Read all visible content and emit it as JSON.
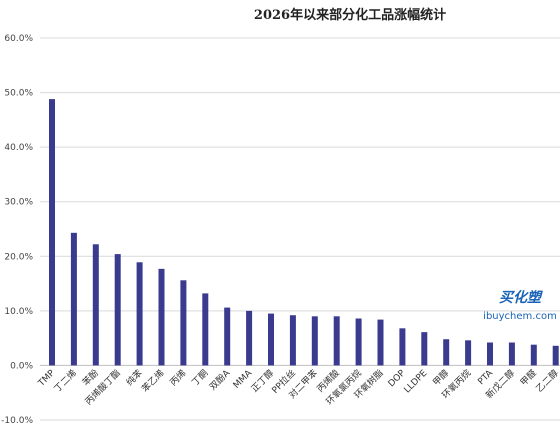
{
  "chart_data": {
    "type": "bar",
    "title": "2026年以来部分化工品涨幅统计",
    "xlabel": "",
    "ylabel": "",
    "ylim": [
      -10,
      60
    ],
    "yticks": [
      "60.0%",
      "50.0%",
      "40.0%",
      "30.0%",
      "20.0%",
      "10.0%",
      "0.0%",
      "-10.0%"
    ],
    "ytick_values": [
      60,
      50,
      40,
      30,
      20,
      10,
      0,
      -10
    ],
    "grid": true,
    "legend": "none",
    "bar_color": "#3a3a8f",
    "categories": [
      "TMP",
      "丁二烯",
      "苯酚",
      "丙烯酸丁酯",
      "纯苯",
      "苯乙烯",
      "丙烯",
      "丁酮",
      "双酚A",
      "MMA",
      "正丁醇",
      "PP拉丝",
      "对二甲苯",
      "丙烯酸",
      "环氧氯丙烷",
      "环氧树脂",
      "DOP",
      "LLDPE",
      "甲醇",
      "环氧丙烷",
      "PTA",
      "新戊二醇",
      "甲醛",
      "乙二醇"
    ],
    "values": [
      48.8,
      24.3,
      22.2,
      20.4,
      18.9,
      17.7,
      15.6,
      13.2,
      10.6,
      10.0,
      9.5,
      9.2,
      9.0,
      9.0,
      8.6,
      8.4,
      6.8,
      6.1,
      4.8,
      4.6,
      4.2,
      4.2,
      3.8,
      3.6
    ]
  },
  "watermark": {
    "brand_cn": "买化塑",
    "brand_en": "ibuychem.com"
  }
}
